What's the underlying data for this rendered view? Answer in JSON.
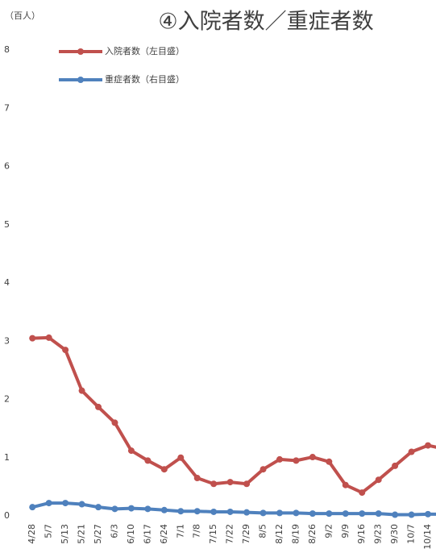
{
  "chart_data": {
    "type": "line",
    "title": "④入院者数／重症者数",
    "y_unit": "（百人）",
    "categories": [
      "4/28",
      "5/7",
      "5/13",
      "5/21",
      "5/27",
      "6/3",
      "6/10",
      "6/17",
      "6/24",
      "7/1",
      "7/8",
      "7/15",
      "7/22",
      "7/29",
      "8/5",
      "8/12",
      "8/19",
      "8/26",
      "9/2",
      "9/9",
      "9/16",
      "9/23",
      "9/30",
      "10/7",
      "10/14",
      null
    ],
    "series": [
      {
        "name": "入院者数（左目盛）",
        "color": "#c0504d",
        "values": [
          3.05,
          3.06,
          2.85,
          2.15,
          1.87,
          1.6,
          1.12,
          0.95,
          0.8,
          1.0,
          0.65,
          0.55,
          0.58,
          0.55,
          0.8,
          0.97,
          0.95,
          1.01,
          0.93,
          0.53,
          0.4,
          0.62,
          0.86,
          1.1,
          1.21,
          1.15
        ]
      },
      {
        "name": "重症者数（右目盛）",
        "color": "#4f81bd",
        "values": [
          0.15,
          0.22,
          0.22,
          0.2,
          0.15,
          0.12,
          0.13,
          0.12,
          0.1,
          0.08,
          0.08,
          0.07,
          0.07,
          0.06,
          0.05,
          0.05,
          0.05,
          0.04,
          0.04,
          0.04,
          0.04,
          0.04,
          0.02,
          0.02,
          0.03,
          0.03
        ]
      }
    ],
    "ylim": [
      0,
      8
    ],
    "yticks": [
      0,
      1,
      2,
      3,
      4,
      5,
      6,
      7,
      8
    ],
    "grid": false
  }
}
